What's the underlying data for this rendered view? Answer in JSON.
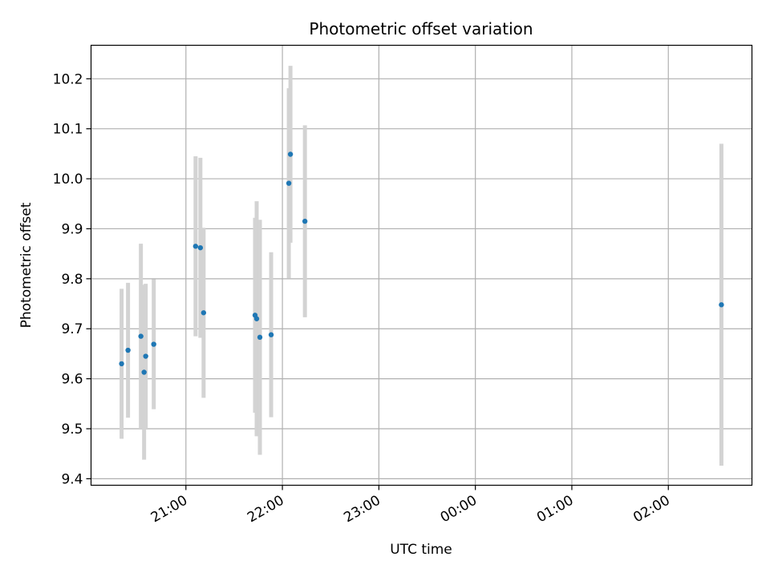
{
  "chart_data": {
    "type": "scatter",
    "title": "Photometric offset variation",
    "xlabel": "UTC time",
    "ylabel": "Photometric offset",
    "x_ticks": [
      "21:00",
      "22:00",
      "23:00",
      "00:00",
      "01:00",
      "02:00"
    ],
    "y_ticks": [
      "9.4",
      "9.5",
      "9.6",
      "9.7",
      "9.8",
      "9.9",
      "10.0",
      "10.1",
      "10.2"
    ],
    "xlim": [
      "20:01",
      "02:52"
    ],
    "ylim": [
      9.387,
      10.267
    ],
    "grid": true,
    "colors": {
      "point": "#1f77b4",
      "errorbar": "#d3d3d3",
      "grid": "#b0b0b0"
    },
    "points": [
      {
        "x": "20:20",
        "y": 9.63,
        "err": 0.15
      },
      {
        "x": "20:24",
        "y": 9.657,
        "err": 0.135
      },
      {
        "x": "20:32",
        "y": 9.685,
        "err": 0.185
      },
      {
        "x": "20:34",
        "y": 9.613,
        "err": 0.175
      },
      {
        "x": "20:35",
        "y": 9.645,
        "err": 0.145
      },
      {
        "x": "20:40",
        "y": 9.669,
        "err": 0.13
      },
      {
        "x": "21:06",
        "y": 9.865,
        "err": 0.18
      },
      {
        "x": "21:09",
        "y": 9.862,
        "err": 0.18
      },
      {
        "x": "21:11",
        "y": 9.732,
        "err": 0.17
      },
      {
        "x": "21:43",
        "y": 9.727,
        "err": 0.195
      },
      {
        "x": "21:44",
        "y": 9.72,
        "err": 0.235
      },
      {
        "x": "21:46",
        "y": 9.683,
        "err": 0.235
      },
      {
        "x": "21:53",
        "y": 9.688,
        "err": 0.165
      },
      {
        "x": "22:04",
        "y": 9.991,
        "err": 0.19
      },
      {
        "x": "22:05",
        "y": 10.049,
        "err": 0.177
      },
      {
        "x": "22:14",
        "y": 9.915,
        "err": 0.192
      },
      {
        "x": "02:33",
        "y": 9.748,
        "err": 0.322
      }
    ]
  }
}
